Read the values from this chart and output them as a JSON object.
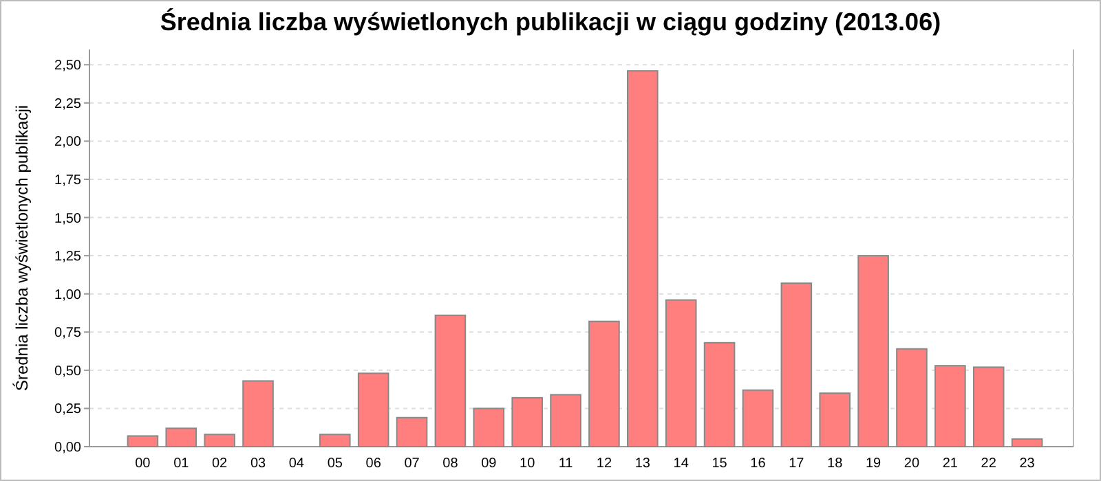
{
  "chart_data": {
    "type": "bar",
    "title": "Średnia liczba wyświetlonych publikacji w ciągu godziny (2013.06)",
    "ylabel": "Średnia liczba wyświetlonych publikacji",
    "categories": [
      "00",
      "01",
      "02",
      "03",
      "04",
      "05",
      "06",
      "07",
      "08",
      "09",
      "10",
      "11",
      "12",
      "13",
      "14",
      "15",
      "16",
      "17",
      "18",
      "19",
      "20",
      "21",
      "22",
      "23"
    ],
    "values": [
      0.07,
      0.12,
      0.08,
      0.43,
      0,
      0.08,
      0.48,
      0.19,
      0.86,
      0.25,
      0.32,
      0.34,
      0.82,
      2.46,
      0.96,
      0.68,
      0.37,
      1.07,
      0.35,
      1.25,
      0.64,
      0.53,
      0.52,
      0.05
    ],
    "color": "#ff7f7f",
    "ylim": [
      0,
      2.6
    ],
    "yticks": [
      {
        "value": 0,
        "label": "0,00"
      },
      {
        "value": 0.25,
        "label": "0,25"
      },
      {
        "value": 0.5,
        "label": "0,50"
      },
      {
        "value": 0.75,
        "label": "0,75"
      },
      {
        "value": 1,
        "label": "1,00"
      },
      {
        "value": 1.25,
        "label": "1,25"
      },
      {
        "value": 1.5,
        "label": "1,50"
      },
      {
        "value": 1.75,
        "label": "1,75"
      },
      {
        "value": 2,
        "label": "2,00"
      },
      {
        "value": 2.25,
        "label": "2,25"
      },
      {
        "value": 2.5,
        "label": "2,50"
      }
    ],
    "grid": "y"
  }
}
